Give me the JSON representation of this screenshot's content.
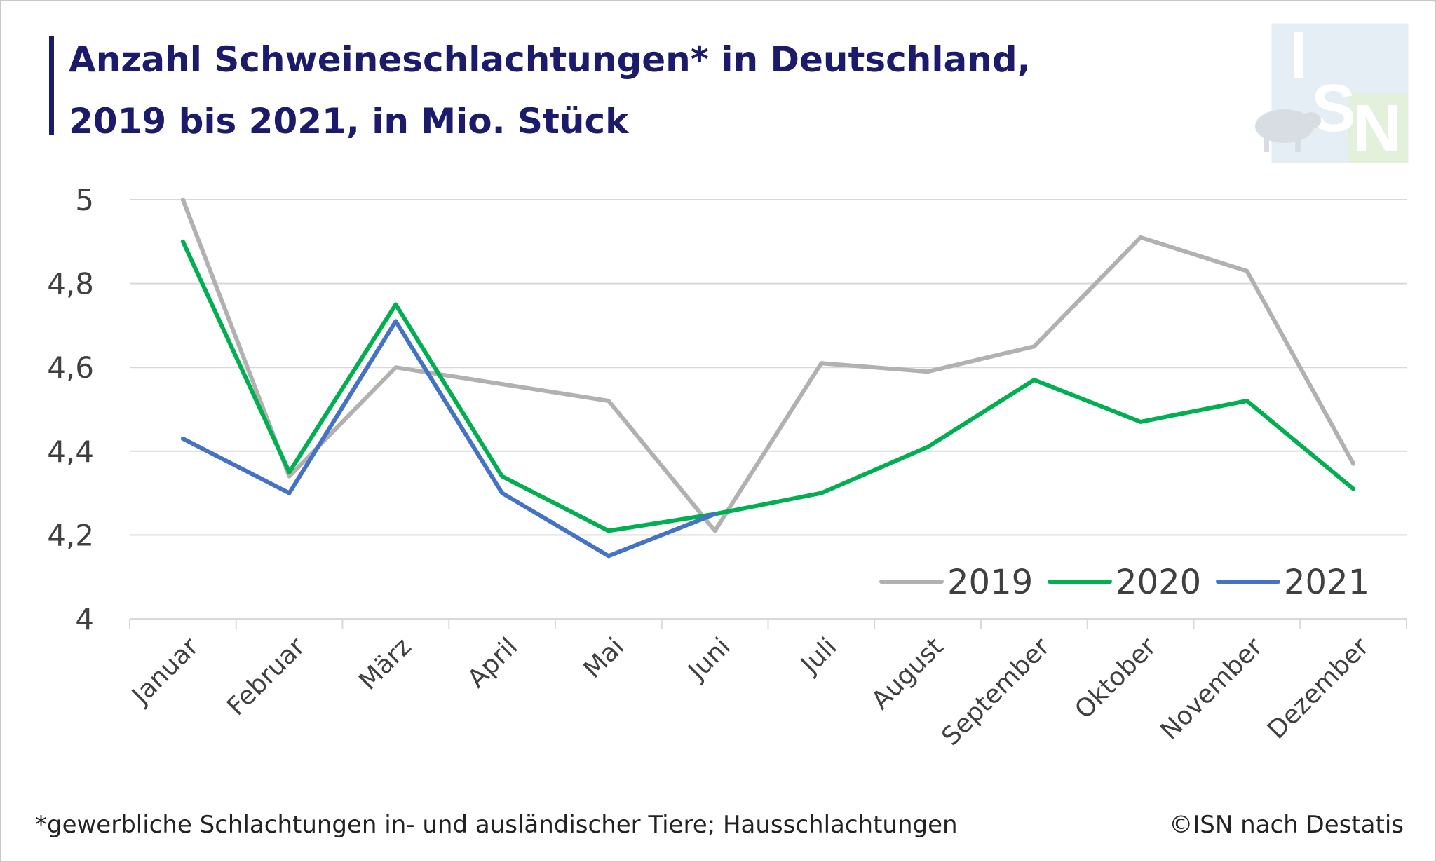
{
  "header": {
    "title_line1": "Anzahl Schweineschlachtungen* in Deutschland,",
    "title_line2": "2019 bis 2021, in Mio. Stück"
  },
  "logo": {
    "letters": [
      "I",
      "S",
      "N"
    ],
    "icon": "pig-icon"
  },
  "footer": {
    "footnote": "*gewerbliche Schlachtungen in- und ausländischer Tiere; Hausschlachtungen",
    "source": "©ISN nach Destatis"
  },
  "colors": {
    "title": "#1c1a6b",
    "grid": "#d9d9d9",
    "axis_text": "#404040",
    "2019": "#b3b0b0",
    "2020": "#00b050",
    "2021": "#4472c4"
  },
  "chart_data": {
    "type": "line",
    "title": "Anzahl Schweineschlachtungen* in Deutschland, 2019 bis 2021, in Mio. Stück",
    "categories": [
      "Januar",
      "Februar",
      "März",
      "April",
      "Mai",
      "Juni",
      "Juli",
      "August",
      "September",
      "Oktober",
      "November",
      "Dezember"
    ],
    "ylim": [
      4,
      5
    ],
    "yticks": [
      "4",
      "4,2",
      "4,4",
      "4,6",
      "4,8",
      "5"
    ],
    "yticks_values": [
      4,
      4.2,
      4.4,
      4.6,
      4.8,
      5
    ],
    "grid": true,
    "legend_position": "bottom-right",
    "series": [
      {
        "name": "2019",
        "color": "#b3b0b0",
        "values": [
          5.0,
          4.34,
          4.6,
          4.56,
          4.52,
          4.21,
          4.61,
          4.59,
          4.65,
          4.91,
          4.83,
          4.37
        ]
      },
      {
        "name": "2020",
        "color": "#00b050",
        "values": [
          4.9,
          4.35,
          4.75,
          4.34,
          4.21,
          4.25,
          4.3,
          4.41,
          4.57,
          4.47,
          4.52,
          4.31
        ]
      },
      {
        "name": "2021",
        "color": "#4472c4",
        "values": [
          4.43,
          4.3,
          4.71,
          4.3,
          4.15,
          4.25,
          null,
          null,
          null,
          null,
          null,
          null
        ]
      }
    ]
  }
}
